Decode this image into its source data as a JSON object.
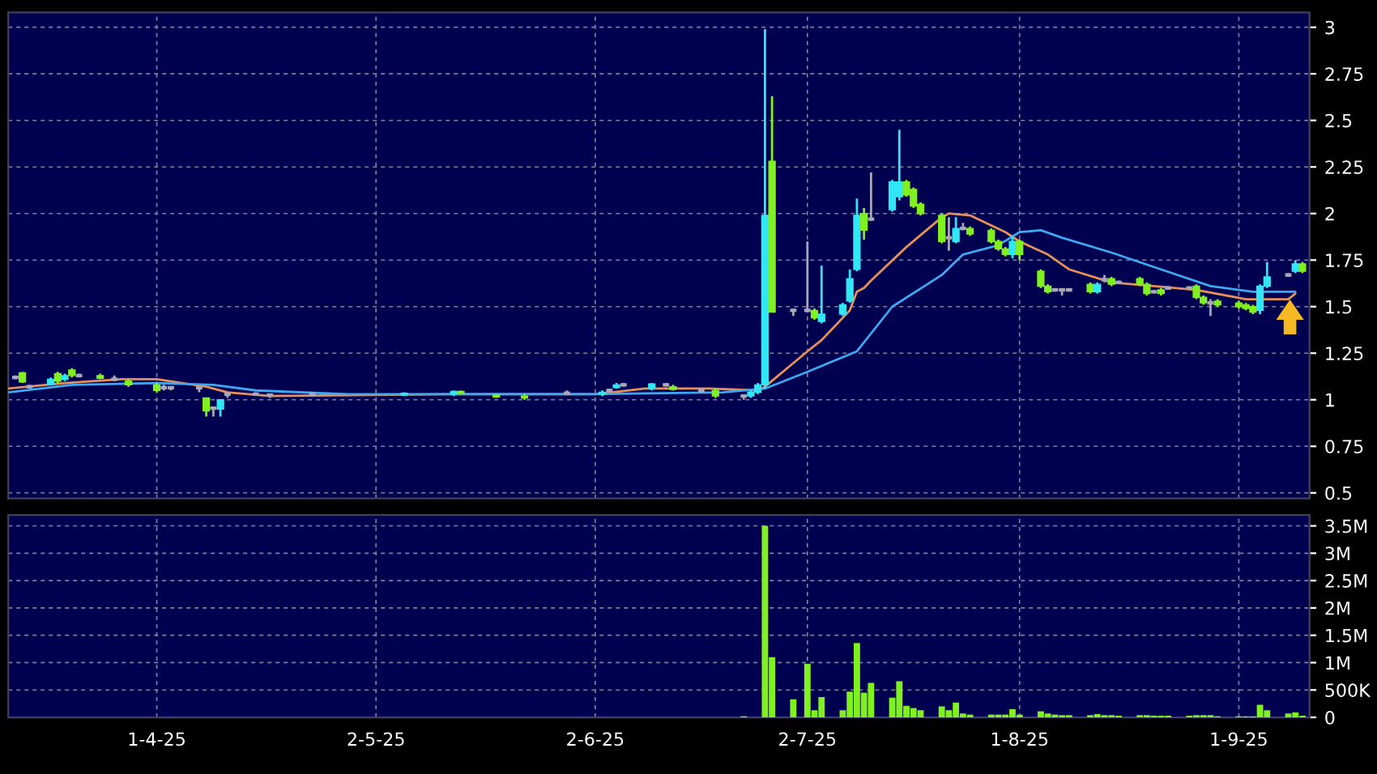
{
  "chart_data": [
    {
      "type": "candlestick",
      "xlim": [
        "2025-03-11",
        "2025-09-11"
      ],
      "xticks": [
        {
          "value": "2025-04-01",
          "label": null
        },
        {
          "value": "2025-05-02",
          "label": null
        },
        {
          "value": "2025-06-02",
          "label": null
        },
        {
          "value": "2025-07-02",
          "label": null
        },
        {
          "value": "2025-08-01",
          "label": null
        },
        {
          "value": "2025-09-01",
          "label": null
        }
      ],
      "ylim": [
        0.47,
        3.08
      ],
      "yticks": [
        0.5,
        0.75,
        1,
        1.25,
        1.5,
        1.75,
        2,
        2.25,
        2.5,
        2.75,
        3
      ],
      "tick_labels": "y",
      "grid": true,
      "x": [
        "2025-03-12",
        "2025-03-13",
        "2025-03-14",
        "2025-03-17",
        "2025-03-18",
        "2025-03-19",
        "2025-03-20",
        "2025-03-21",
        "2025-03-24",
        "2025-03-26",
        "2025-03-28",
        "2025-04-01",
        "2025-04-02",
        "2025-04-03",
        "2025-04-07",
        "2025-04-08",
        "2025-04-09",
        "2025-04-10",
        "2025-04-11",
        "2025-04-15",
        "2025-04-17",
        "2025-04-23",
        "2025-05-06",
        "2025-05-13",
        "2025-05-14",
        "2025-05-19",
        "2025-05-23",
        "2025-05-29",
        "2025-06-03",
        "2025-06-04",
        "2025-06-05",
        "2025-06-06",
        "2025-06-10",
        "2025-06-12",
        "2025-06-13",
        "2025-06-17",
        "2025-06-19",
        "2025-06-23",
        "2025-06-24",
        "2025-06-25",
        "2025-06-26",
        "2025-06-27",
        "2025-06-30",
        "2025-07-02",
        "2025-07-03",
        "2025-07-04",
        "2025-07-07",
        "2025-07-08",
        "2025-07-09",
        "2025-07-10",
        "2025-07-11",
        "2025-07-14",
        "2025-07-15",
        "2025-07-16",
        "2025-07-17",
        "2025-07-18",
        "2025-07-21",
        "2025-07-22",
        "2025-07-23",
        "2025-07-24",
        "2025-07-25",
        "2025-07-28",
        "2025-07-29",
        "2025-07-30",
        "2025-07-31",
        "2025-08-01",
        "2025-08-04",
        "2025-08-05",
        "2025-08-06",
        "2025-08-07",
        "2025-08-08",
        "2025-08-11",
        "2025-08-12",
        "2025-08-13",
        "2025-08-14",
        "2025-08-15",
        "2025-08-18",
        "2025-08-19",
        "2025-08-20",
        "2025-08-21",
        "2025-08-22",
        "2025-08-25",
        "2025-08-26",
        "2025-08-27",
        "2025-08-28",
        "2025-08-29",
        "2025-09-01",
        "2025-09-02",
        "2025-09-03",
        "2025-09-04",
        "2025-09-05",
        "2025-09-08",
        "2025-09-09",
        "2025-09-10"
      ],
      "ohlc": [
        [
          1.12,
          1.13,
          1.11,
          1.12
        ],
        [
          1.145,
          1.15,
          1.09,
          1.095
        ],
        [
          1.07,
          1.08,
          1.06,
          1.07
        ],
        [
          1.085,
          1.12,
          1.08,
          1.11
        ],
        [
          1.14,
          1.15,
          1.09,
          1.1
        ],
        [
          1.11,
          1.14,
          1.1,
          1.13
        ],
        [
          1.16,
          1.17,
          1.12,
          1.13
        ],
        [
          1.13,
          1.14,
          1.12,
          1.13
        ],
        [
          1.13,
          1.14,
          1.11,
          1.115
        ],
        [
          1.11,
          1.13,
          1.1,
          1.11
        ],
        [
          1.1,
          1.11,
          1.07,
          1.08
        ],
        [
          1.08,
          1.09,
          1.04,
          1.05
        ],
        [
          1.065,
          1.08,
          1.05,
          1.065
        ],
        [
          1.065,
          1.07,
          1.05,
          1.065
        ],
        [
          1.065,
          1.07,
          1.04,
          1.065
        ],
        [
          1.01,
          1.01,
          0.91,
          0.94
        ],
        [
          0.955,
          0.96,
          0.91,
          0.955
        ],
        [
          0.95,
          1.0,
          0.91,
          1.0
        ],
        [
          1.03,
          1.04,
          1.01,
          1.03
        ],
        [
          1.03,
          1.04,
          1.02,
          1.03
        ],
        [
          1.025,
          1.03,
          1.01,
          1.025
        ],
        [
          1.03,
          1.04,
          1.02,
          1.03
        ],
        [
          1.025,
          1.04,
          1.02,
          1.035
        ],
        [
          1.03,
          1.05,
          1.02,
          1.045
        ],
        [
          1.045,
          1.05,
          1.03,
          1.035
        ],
        [
          1.025,
          1.03,
          1.01,
          1.015
        ],
        [
          1.02,
          1.03,
          1.0,
          1.01
        ],
        [
          1.035,
          1.05,
          1.03,
          1.035
        ],
        [
          1.03,
          1.05,
          1.02,
          1.04
        ],
        [
          1.05,
          1.06,
          1.04,
          1.05
        ],
        [
          1.065,
          1.09,
          1.06,
          1.08
        ],
        [
          1.08,
          1.09,
          1.07,
          1.08
        ],
        [
          1.06,
          1.09,
          1.05,
          1.085
        ],
        [
          1.08,
          1.09,
          1.07,
          1.08
        ],
        [
          1.07,
          1.08,
          1.05,
          1.055
        ],
        [
          1.05,
          1.06,
          1.04,
          1.05
        ],
        [
          1.05,
          1.06,
          1.01,
          1.02
        ],
        [
          1.02,
          1.03,
          1.0,
          1.02
        ],
        [
          1.02,
          1.05,
          1.01,
          1.04
        ],
        [
          1.04,
          1.09,
          1.03,
          1.08
        ],
        [
          1.08,
          2.99,
          1.06,
          1.99
        ],
        [
          2.28,
          2.63,
          1.47,
          1.47
        ],
        [
          1.48,
          1.49,
          1.45,
          1.48
        ],
        [
          1.48,
          1.85,
          1.47,
          1.48
        ],
        [
          1.48,
          1.49,
          1.43,
          1.44
        ],
        [
          1.42,
          1.72,
          1.41,
          1.46
        ],
        [
          1.46,
          1.52,
          1.45,
          1.51
        ],
        [
          1.53,
          1.7,
          1.52,
          1.65
        ],
        [
          1.7,
          2.08,
          1.69,
          1.99
        ],
        [
          2.0,
          2.03,
          1.86,
          1.91
        ],
        [
          1.97,
          2.22,
          1.96,
          1.97
        ],
        [
          2.02,
          2.18,
          2.01,
          2.17
        ],
        [
          2.09,
          2.45,
          2.07,
          2.17
        ],
        [
          2.17,
          2.18,
          2.09,
          2.1
        ],
        [
          2.13,
          2.14,
          2.03,
          2.04
        ],
        [
          2.05,
          2.06,
          1.99,
          2.0
        ],
        [
          1.99,
          2.0,
          1.84,
          1.85
        ],
        [
          1.87,
          1.98,
          1.8,
          1.87
        ],
        [
          1.85,
          1.98,
          1.84,
          1.92
        ],
        [
          1.92,
          1.95,
          1.91,
          1.92
        ],
        [
          1.92,
          1.93,
          1.88,
          1.89
        ],
        [
          1.91,
          1.92,
          1.84,
          1.85
        ],
        [
          1.85,
          1.86,
          1.8,
          1.81
        ],
        [
          1.81,
          1.82,
          1.77,
          1.78
        ],
        [
          1.78,
          1.88,
          1.76,
          1.85
        ],
        [
          1.85,
          1.86,
          1.75,
          1.78
        ],
        [
          1.69,
          1.7,
          1.6,
          1.61
        ],
        [
          1.61,
          1.62,
          1.57,
          1.58
        ],
        [
          1.59,
          1.6,
          1.58,
          1.59
        ],
        [
          1.59,
          1.6,
          1.56,
          1.59
        ],
        [
          1.59,
          1.6,
          1.58,
          1.59
        ],
        [
          1.62,
          1.63,
          1.57,
          1.58
        ],
        [
          1.58,
          1.63,
          1.57,
          1.62
        ],
        [
          1.645,
          1.67,
          1.63,
          1.645
        ],
        [
          1.65,
          1.66,
          1.61,
          1.62
        ],
        [
          1.63,
          1.64,
          1.62,
          1.63
        ],
        [
          1.65,
          1.66,
          1.61,
          1.62
        ],
        [
          1.62,
          1.63,
          1.56,
          1.57
        ],
        [
          1.58,
          1.59,
          1.57,
          1.58
        ],
        [
          1.59,
          1.6,
          1.56,
          1.57
        ],
        [
          1.6,
          1.61,
          1.59,
          1.6
        ],
        [
          1.6,
          1.61,
          1.59,
          1.6
        ],
        [
          1.61,
          1.62,
          1.54,
          1.55
        ],
        [
          1.55,
          1.56,
          1.51,
          1.52
        ],
        [
          1.52,
          1.54,
          1.45,
          1.52
        ],
        [
          1.53,
          1.54,
          1.5,
          1.51
        ],
        [
          1.52,
          1.53,
          1.49,
          1.5
        ],
        [
          1.51,
          1.52,
          1.48,
          1.49
        ],
        [
          1.5,
          1.51,
          1.46,
          1.47
        ],
        [
          1.48,
          1.62,
          1.46,
          1.61
        ],
        [
          1.61,
          1.74,
          1.6,
          1.66
        ],
        [
          1.67,
          1.68,
          1.66,
          1.67
        ],
        [
          1.69,
          1.75,
          1.68,
          1.73
        ],
        [
          1.73,
          1.74,
          1.68,
          1.69
        ]
      ],
      "colors": [
        "#a8a8b8",
        "#80f020",
        "#a8a8b8",
        "#33e6f5",
        "#80f020",
        "#33e6f5",
        "#80f020",
        "#a8a8b8",
        "#80f020",
        "#a8a8b8",
        "#80f020",
        "#80f020",
        "#a8a8b8",
        "#a8a8b8",
        "#a8a8b8",
        "#80f020",
        "#a8a8b8",
        "#33e6f5",
        "#a8a8b8",
        "#a8a8b8",
        "#a8a8b8",
        "#a8a8b8",
        "#33e6f5",
        "#33e6f5",
        "#80f020",
        "#80f020",
        "#80f020",
        "#a8a8b8",
        "#33e6f5",
        "#a8a8b8",
        "#33e6f5",
        "#a8a8b8",
        "#33e6f5",
        "#a8a8b8",
        "#80f020",
        "#a8a8b8",
        "#80f020",
        "#a8a8b8",
        "#33e6f5",
        "#33e6f5",
        "#33e6f5",
        "#80f020",
        "#a8a8b8",
        "#a8a8b8",
        "#80f020",
        "#33e6f5",
        "#33e6f5",
        "#33e6f5",
        "#33e6f5",
        "#80f020",
        "#a8a8b8",
        "#33e6f5",
        "#33e6f5",
        "#80f020",
        "#80f020",
        "#80f020",
        "#80f020",
        "#a8a8b8",
        "#33e6f5",
        "#a8a8b8",
        "#80f020",
        "#80f020",
        "#80f020",
        "#80f020",
        "#33e6f5",
        "#80f020",
        "#80f020",
        "#80f020",
        "#a8a8b8",
        "#a8a8b8",
        "#a8a8b8",
        "#80f020",
        "#33e6f5",
        "#a8a8b8",
        "#80f020",
        "#a8a8b8",
        "#80f020",
        "#80f020",
        "#a8a8b8",
        "#80f020",
        "#a8a8b8",
        "#a8a8b8",
        "#80f020",
        "#80f020",
        "#a8a8b8",
        "#80f020",
        "#80f020",
        "#80f020",
        "#80f020",
        "#33e6f5",
        "#33e6f5",
        "#a8a8b8",
        "#33e6f5",
        "#80f020"
      ],
      "series": [
        {
          "type": "line",
          "color": "#e8905a",
          "x": [
            "2025-03-11",
            "2025-03-19",
            "2025-03-27",
            "2025-04-01",
            "2025-04-08",
            "2025-04-11",
            "2025-04-17",
            "2025-05-12",
            "2025-06-02",
            "2025-06-09",
            "2025-06-18",
            "2025-06-25",
            "2025-06-26",
            "2025-07-02",
            "2025-07-04",
            "2025-07-08",
            "2025-07-09",
            "2025-07-10",
            "2025-07-11",
            "2025-07-16",
            "2025-07-21",
            "2025-07-22",
            "2025-07-25",
            "2025-07-30",
            "2025-08-01",
            "2025-08-05",
            "2025-08-08",
            "2025-08-14",
            "2025-08-20",
            "2025-08-26",
            "2025-09-02",
            "2025-09-08",
            "2025-09-09"
          ],
          "values": [
            1.06,
            1.09,
            1.11,
            1.11,
            1.07,
            1.04,
            1.02,
            1.03,
            1.03,
            1.06,
            1.06,
            1.05,
            1.07,
            1.26,
            1.32,
            1.48,
            1.58,
            1.6,
            1.64,
            1.82,
            1.98,
            2.0,
            1.99,
            1.9,
            1.85,
            1.78,
            1.7,
            1.63,
            1.61,
            1.59,
            1.54,
            1.54,
            1.57
          ]
        },
        {
          "type": "line",
          "color": "#40a8f0",
          "x": [
            "2025-03-11",
            "2025-03-20",
            "2025-04-01",
            "2025-04-09",
            "2025-04-15",
            "2025-04-28",
            "2025-06-02",
            "2025-06-20",
            "2025-06-26",
            "2025-07-02",
            "2025-07-09",
            "2025-07-14",
            "2025-07-21",
            "2025-07-24",
            "2025-07-29",
            "2025-08-01",
            "2025-08-04",
            "2025-08-07",
            "2025-08-14",
            "2025-08-21",
            "2025-08-28",
            "2025-09-03",
            "2025-09-09"
          ],
          "values": [
            1.04,
            1.08,
            1.09,
            1.08,
            1.05,
            1.03,
            1.03,
            1.04,
            1.06,
            1.15,
            1.26,
            1.5,
            1.67,
            1.78,
            1.83,
            1.9,
            1.91,
            1.87,
            1.79,
            1.7,
            1.61,
            1.58,
            1.58
          ]
        }
      ]
    },
    {
      "type": "bar",
      "xlim": [
        "2025-03-11",
        "2025-09-11"
      ],
      "xticks": [
        {
          "value": "2025-04-01",
          "label": "1-4-25"
        },
        {
          "value": "2025-05-02",
          "label": "2-5-25"
        },
        {
          "value": "2025-06-02",
          "label": "2-6-25"
        },
        {
          "value": "2025-07-02",
          "label": "2-7-25"
        },
        {
          "value": "2025-08-01",
          "label": "1-8-25"
        },
        {
          "value": "2025-09-01",
          "label": "1-9-25"
        }
      ],
      "ylim": [
        0,
        3700000
      ],
      "yticks": [
        0,
        {
          "value": 500000,
          "label": "500K"
        },
        {
          "value": 1000000,
          "label": "1M"
        },
        {
          "value": 1500000,
          "label": "1.5M"
        },
        {
          "value": 2000000,
          "label": "2M"
        },
        {
          "value": 2500000,
          "label": "2.5M"
        },
        {
          "value": 3000000,
          "label": "3M"
        },
        {
          "value": 3500000,
          "label": "3.5M"
        }
      ],
      "grid": true,
      "color": "#80f020",
      "x": [
        "2025-06-23",
        "2025-06-26",
        "2025-06-27",
        "2025-06-30",
        "2025-07-02",
        "2025-07-03",
        "2025-07-04",
        "2025-07-07",
        "2025-07-08",
        "2025-07-09",
        "2025-07-10",
        "2025-07-11",
        "2025-07-14",
        "2025-07-15",
        "2025-07-16",
        "2025-07-17",
        "2025-07-18",
        "2025-07-21",
        "2025-07-22",
        "2025-07-23",
        "2025-07-24",
        "2025-07-25",
        "2025-07-28",
        "2025-07-29",
        "2025-07-30",
        "2025-07-31",
        "2025-08-01",
        "2025-08-04",
        "2025-08-05",
        "2025-08-06",
        "2025-08-07",
        "2025-08-08",
        "2025-08-11",
        "2025-08-12",
        "2025-08-13",
        "2025-08-14",
        "2025-08-15",
        "2025-08-18",
        "2025-08-19",
        "2025-08-20",
        "2025-08-21",
        "2025-08-22",
        "2025-08-25",
        "2025-08-26",
        "2025-08-27",
        "2025-08-28",
        "2025-08-29",
        "2025-09-01",
        "2025-09-02",
        "2025-09-03",
        "2025-09-04",
        "2025-09-05",
        "2025-09-08",
        "2025-09-09",
        "2025-09-10"
      ],
      "values": [
        20000,
        3500000,
        1100000,
        330000,
        980000,
        130000,
        370000,
        130000,
        470000,
        1360000,
        450000,
        630000,
        360000,
        660000,
        210000,
        170000,
        130000,
        200000,
        130000,
        270000,
        70000,
        50000,
        50000,
        50000,
        50000,
        150000,
        50000,
        110000,
        70000,
        50000,
        40000,
        40000,
        40000,
        60000,
        40000,
        40000,
        30000,
        40000,
        40000,
        30000,
        30000,
        30000,
        30000,
        40000,
        40000,
        40000,
        20000,
        20000,
        20000,
        20000,
        230000,
        130000,
        70000,
        90000,
        30000
      ]
    }
  ]
}
